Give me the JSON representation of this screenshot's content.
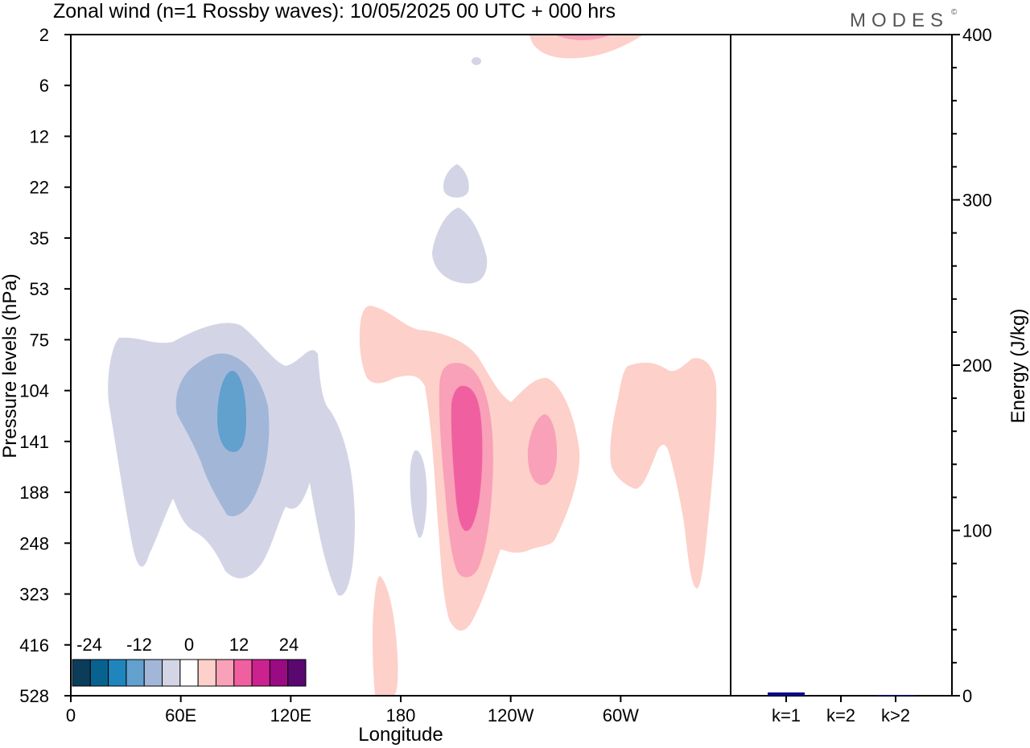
{
  "header": {
    "title": "Zonal wind (n=1 Rossby waves):  10/05/2025  00 UTC  + 000 hrs",
    "logo": "MODES",
    "logo_mark": "©"
  },
  "chart_data": [
    {
      "type": "heatmap",
      "title": "Zonal wind (n=1 Rossby waves):  10/05/2025  00 UTC  + 000 hrs",
      "xlabel": "Longitude",
      "ylabel": "Pressure levels (hPa)",
      "x_ticks": [
        "0",
        "60E",
        "120E",
        "180",
        "120W",
        "60W"
      ],
      "x_tick_values": [
        0,
        60,
        120,
        180,
        240,
        300
      ],
      "xlim": [
        0,
        360
      ],
      "y_ticks": [
        "2",
        "6",
        "12",
        "22",
        "35",
        "53",
        "75",
        "104",
        "141",
        "188",
        "248",
        "323",
        "416",
        "528"
      ],
      "y_order": "top-to-bottom",
      "colorbar": {
        "labels": [
          "-24",
          "-12",
          "0",
          "12",
          "24"
        ],
        "colors": [
          "#0b3d5a",
          "#08628f",
          "#1e86bd",
          "#62a0ce",
          "#a2b7d8",
          "#d3d5e6",
          "#ffffff",
          "#fdd0c9",
          "#f8a1b8",
          "#f060a0",
          "#cc2290",
          "#9a0a82",
          "#5a0870"
        ]
      },
      "regions": [
        {
          "sign": "negative",
          "level": -4,
          "center_lon": 80,
          "center_hpa": 141,
          "note": "broad easterly anomaly"
        },
        {
          "sign": "negative",
          "level": -8,
          "center_lon": 85,
          "center_hpa": 120
        },
        {
          "sign": "negative",
          "level": -12,
          "center_lon": 88,
          "center_hpa": 115
        },
        {
          "sign": "positive",
          "level": 4,
          "center_lon": 210,
          "center_hpa": 141
        },
        {
          "sign": "positive",
          "level": 8,
          "center_lon": 205,
          "center_hpa": 141
        },
        {
          "sign": "positive",
          "level": 12,
          "center_lon": 205,
          "center_hpa": 141
        },
        {
          "sign": "positive",
          "level": 8,
          "center_lon": 235,
          "center_hpa": 141
        },
        {
          "sign": "positive",
          "level": 4,
          "center_lon": 320,
          "center_hpa": 141
        },
        {
          "sign": "positive",
          "level": 4,
          "center_lon": 175,
          "center_hpa": 416
        },
        {
          "sign": "positive",
          "level": 4,
          "center_lon": 215,
          "center_hpa": 2
        },
        {
          "sign": "negative",
          "level": -4,
          "center_lon": 210,
          "center_hpa": 30
        },
        {
          "sign": "negative",
          "level": -4,
          "center_lon": 190,
          "center_hpa": 188
        }
      ]
    },
    {
      "type": "bar",
      "categories": [
        "k=1",
        "k=2",
        "k>2"
      ],
      "values": [
        2,
        0,
        0.5
      ],
      "ylabel": "Energy (J/kg)",
      "ylim": [
        0,
        400
      ],
      "y_ticks": [
        "0",
        "100",
        "200",
        "300",
        "400"
      ],
      "y_tick_values": [
        0,
        100,
        200,
        300,
        400
      ],
      "bar_color": "#0a0a8a"
    }
  ]
}
